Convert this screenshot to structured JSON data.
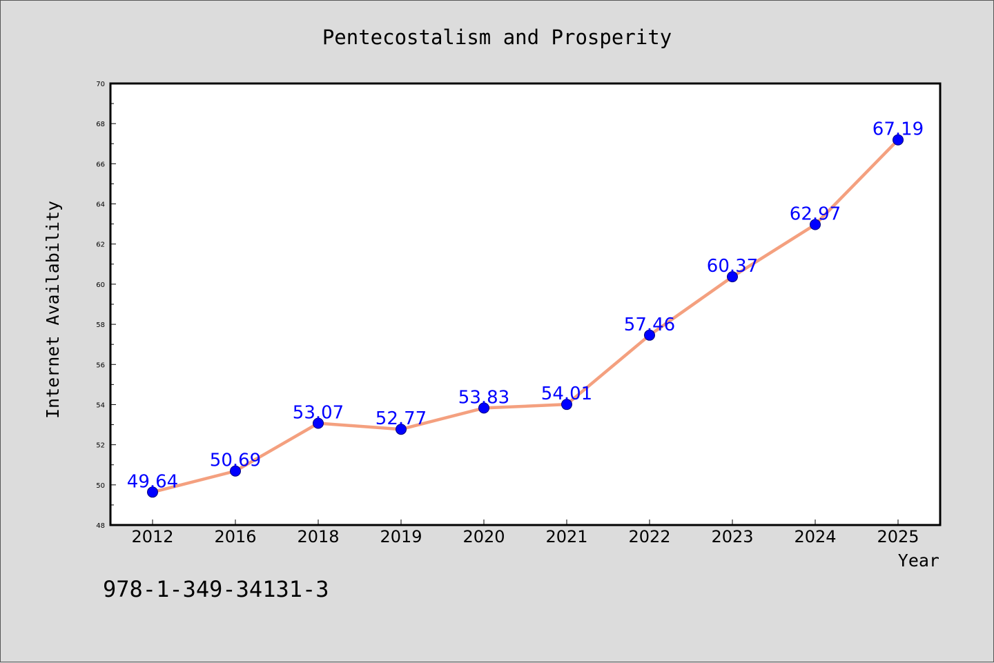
{
  "chart_data": {
    "type": "line",
    "title": "Pentecostalism and Prosperity",
    "xlabel": "Year",
    "ylabel": "Internet Availability",
    "categories": [
      "2012",
      "2016",
      "2018",
      "2019",
      "2020",
      "2021",
      "2022",
      "2023",
      "2024",
      "2025"
    ],
    "series": [
      {
        "values": [
          49.64,
          50.69,
          53.07,
          52.77,
          53.83,
          54.01,
          57.46,
          60.37,
          62.97,
          67.19
        ],
        "labels": [
          "49.64",
          "50.69",
          "53.07",
          "52.77",
          "53.83",
          "54.01",
          "57.46",
          "60.37",
          "62.97",
          "67.19"
        ]
      }
    ],
    "ylim": [
      48,
      70
    ],
    "yticks": [
      "48",
      "50",
      "52",
      "54",
      "56",
      "58",
      "60",
      "62",
      "64",
      "66",
      "68",
      "70"
    ],
    "grid": false,
    "legend": "none",
    "colors": {
      "line": "#f4a07f",
      "marker": "#0000ff",
      "data_label": "#0000ff",
      "background": "#dcdcdc",
      "plot_area": "#ffffff"
    }
  },
  "footer_text": "978-1-349-34131-3"
}
